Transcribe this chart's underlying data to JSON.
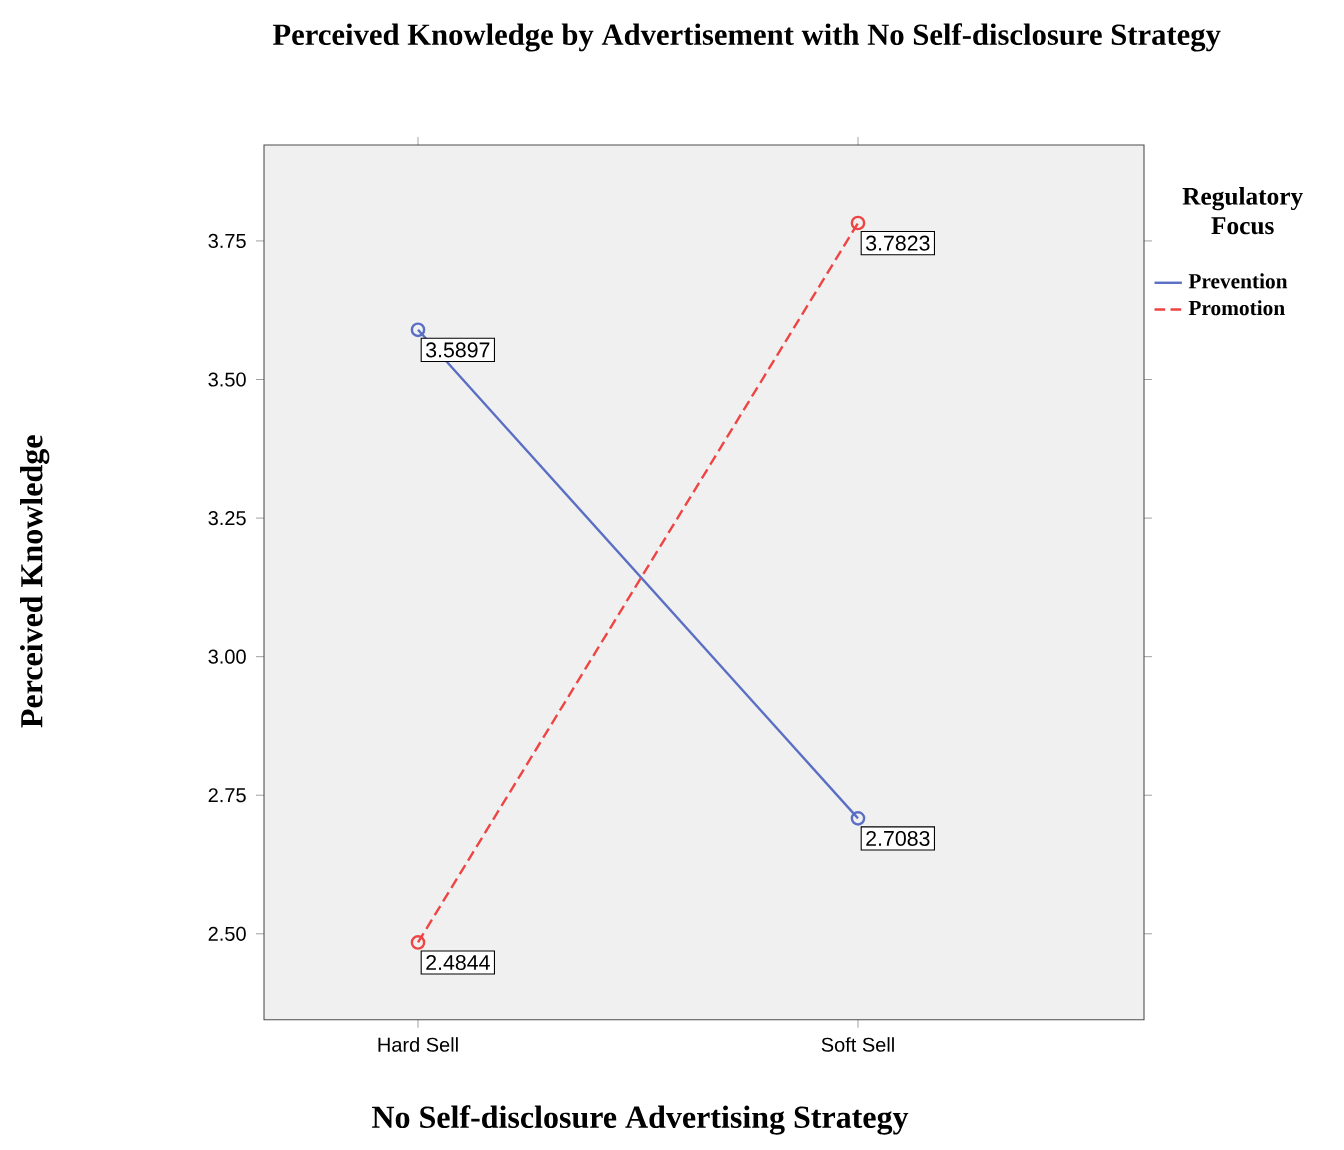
{
  "chart_data": {
    "type": "line",
    "title": "Perceived Knowledge by Advertisement with No Self-disclosure Strategy",
    "xlabel": "No Self-disclosure Advertising Strategy",
    "ylabel": "Perceived Knowledge",
    "legend_title": "Regulatory Focus",
    "categories": [
      "Hard Sell",
      "Soft Sell"
    ],
    "series": [
      {
        "name": "Prevention",
        "color": "#5a6ec4",
        "values": [
          3.5897,
          2.7083
        ],
        "line_style": "solid"
      },
      {
        "name": "Promotion",
        "color": "#ee4444",
        "values": [
          2.4844,
          3.7823
        ],
        "line_style": "dashed"
      }
    ],
    "ylim": [
      2.345,
      3.923
    ],
    "yticks": [
      {
        "value": 2.5,
        "label": "2.50"
      },
      {
        "value": 2.75,
        "label": "2.75"
      },
      {
        "value": 3.0,
        "label": "3.00"
      },
      {
        "value": 3.25,
        "label": "3.25"
      },
      {
        "value": 3.5,
        "label": "3.50"
      },
      {
        "value": 3.75,
        "label": "3.75"
      }
    ],
    "marker": "circle",
    "data_labels": true,
    "legend": "right",
    "grid": false
  }
}
